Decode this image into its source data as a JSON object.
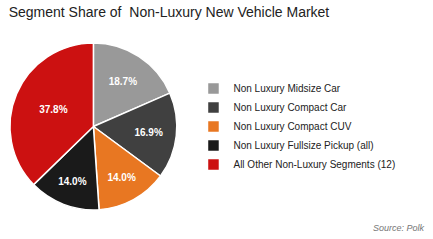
{
  "chart_data": {
    "type": "pie",
    "title": "Segment Share of  Non-Luxury New Vehicle Market",
    "categories": [
      "Non Luxury Midsize Car",
      "Non Luxury Compact Car",
      "Non Luxury Compact CUV",
      "Non Luxury Fullsize Pickup (all)",
      "All Other Non-Luxury Segments (12)"
    ],
    "values": [
      18.7,
      16.9,
      14.0,
      14.0,
      37.8
    ],
    "value_labels": [
      "18.7%",
      "16.9%",
      "14.0%",
      "14.0%",
      "37.8%"
    ],
    "data_labels": true,
    "colors": [
      "#999999",
      "#404040",
      "#e87722",
      "#1a1a1a",
      "#cc1111"
    ],
    "legend": "right",
    "annotations": [
      "Source: Polk"
    ]
  }
}
